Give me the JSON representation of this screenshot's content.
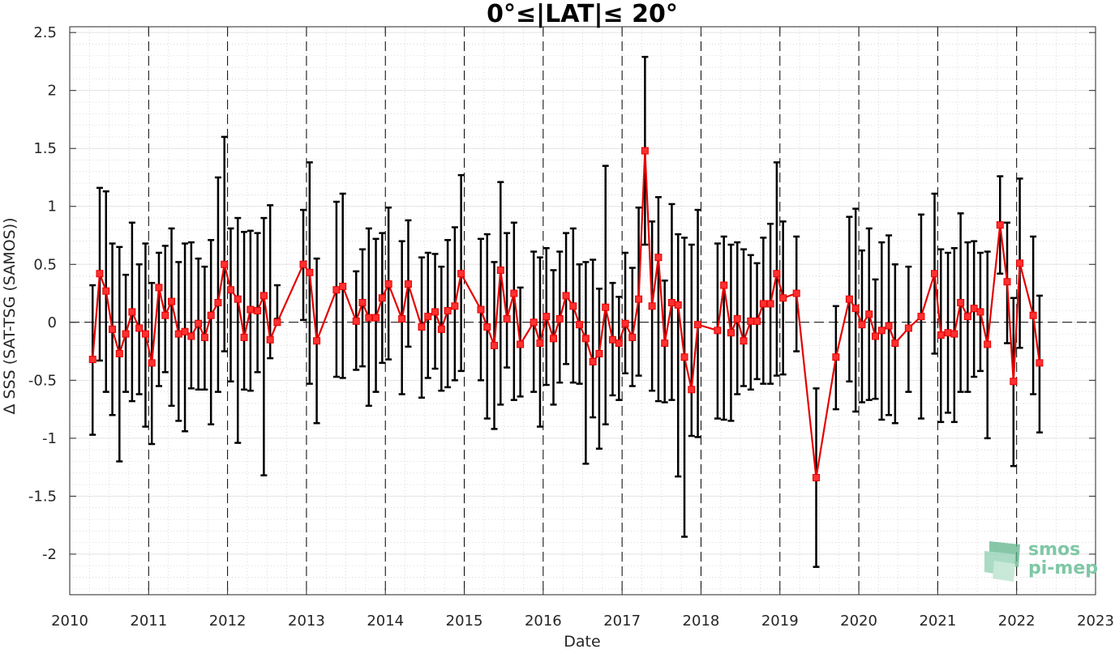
{
  "chart_data": {
    "type": "line",
    "title": "0°≤|LAT|≤ 20°",
    "xlabel": "Date",
    "ylabel": "Δ SSS (SAT-TSG (SAMOS))",
    "xlim": [
      2010,
      2023
    ],
    "ylim": [
      -2.35,
      2.55
    ],
    "xticks": [
      "2010",
      "2011",
      "2012",
      "2013",
      "2014",
      "2015",
      "2016",
      "2017",
      "2018",
      "2019",
      "2020",
      "2021",
      "2022",
      "2023"
    ],
    "yticks": [
      "2.5",
      "2",
      "1.5",
      "1",
      "0.5",
      "0",
      "-0.5",
      "-1",
      "-1.5",
      "-2"
    ],
    "vertical_dashed_lines_at_years": true,
    "zero_line": "dashed",
    "grid": "dotted",
    "colors": {
      "line": "#e60000",
      "marker_face": "#ff3030",
      "error_bar": "#000000"
    },
    "series": [
      {
        "x": [
          2010.29,
          2010.38,
          2010.46,
          2010.54,
          2010.63,
          2010.71,
          2010.79,
          2010.88,
          2010.96,
          2011.04,
          2011.13,
          2011.21,
          2011.29,
          2011.38,
          2011.46,
          2011.54,
          2011.63,
          2011.71,
          2011.79,
          2011.88,
          2011.96,
          2012.04,
          2012.13,
          2012.21,
          2012.29,
          2012.38,
          2012.46,
          2012.54,
          2012.63,
          2012.96,
          2013.04,
          2013.13,
          2013.38,
          2013.46,
          2013.63,
          2013.71,
          2013.79,
          2013.88,
          2013.96,
          2014.04,
          2014.21,
          2014.29,
          2014.46,
          2014.54,
          2014.63,
          2014.71,
          2014.79,
          2014.88,
          2014.96,
          2015.21,
          2015.29,
          2015.38,
          2015.46,
          2015.54,
          2015.63,
          2015.71,
          2015.88,
          2015.96,
          2016.04,
          2016.13,
          2016.21,
          2016.29,
          2016.38,
          2016.46,
          2016.54,
          2016.63,
          2016.71,
          2016.79,
          2016.88,
          2016.96,
          2017.04,
          2017.13,
          2017.21,
          2017.29,
          2017.38,
          2017.46,
          2017.54,
          2017.63,
          2017.71,
          2017.79,
          2017.88,
          2017.96,
          2018.21,
          2018.29,
          2018.38,
          2018.46,
          2018.54,
          2018.63,
          2018.71,
          2018.79,
          2018.88,
          2018.96,
          2019.04,
          2019.21,
          2019.46,
          2019.71,
          2019.88,
          2019.96,
          2020.04,
          2020.13,
          2020.21,
          2020.29,
          2020.38,
          2020.46,
          2020.63,
          2020.79,
          2020.96,
          2021.04,
          2021.13,
          2021.21,
          2021.29,
          2021.38,
          2021.46,
          2021.54,
          2021.63,
          2021.79,
          2021.88,
          2021.96,
          2022.04,
          2022.21,
          2022.29
        ],
        "y": [
          -0.32,
          0.42,
          0.27,
          -0.06,
          -0.27,
          -0.1,
          0.09,
          -0.05,
          -0.1,
          -0.35,
          0.3,
          0.06,
          0.18,
          -0.1,
          -0.08,
          -0.12,
          -0.01,
          -0.13,
          0.06,
          0.17,
          0.5,
          0.28,
          0.2,
          -0.13,
          0.11,
          0.1,
          0.23,
          -0.15,
          0.0,
          0.5,
          0.43,
          -0.16,
          0.28,
          0.31,
          0.01,
          0.17,
          0.04,
          0.04,
          0.21,
          0.33,
          0.03,
          0.33,
          -0.04,
          0.05,
          0.09,
          -0.06,
          0.1,
          0.14,
          0.42,
          0.11,
          -0.04,
          -0.2,
          0.45,
          0.03,
          0.25,
          -0.19,
          0.0,
          -0.18,
          0.05,
          -0.14,
          0.03,
          0.23,
          0.14,
          -0.02,
          -0.14,
          -0.34,
          -0.27,
          0.13,
          -0.15,
          -0.18,
          -0.01,
          -0.13,
          0.2,
          1.48,
          0.14,
          0.56,
          -0.18,
          0.17,
          0.15,
          -0.3,
          -0.58,
          -0.02,
          -0.07,
          0.32,
          -0.09,
          0.03,
          -0.16,
          0.01,
          0.01,
          0.16,
          0.16,
          0.42,
          0.21,
          0.25,
          -1.34,
          -0.3,
          0.2,
          0.12,
          -0.02,
          0.07,
          -0.12,
          -0.07,
          -0.03,
          -0.18,
          -0.05,
          0.05,
          0.42,
          -0.11,
          -0.09,
          -0.1,
          0.17,
          0.05,
          0.12,
          0.09,
          -0.19,
          0.84,
          0.35,
          -0.51,
          0.51,
          0.06,
          -0.35
        ],
        "y_low": [
          -0.97,
          -0.33,
          -0.6,
          -0.8,
          -1.2,
          -0.6,
          -0.68,
          -0.62,
          -0.9,
          -1.05,
          -0.55,
          -0.43,
          -0.72,
          -0.85,
          -0.94,
          -0.57,
          -0.58,
          -0.58,
          -0.88,
          -0.6,
          -0.25,
          -0.51,
          -1.04,
          -0.58,
          -0.59,
          -0.43,
          -1.32,
          -0.31,
          0.03,
          0.02,
          -0.53,
          -0.87,
          -0.47,
          -0.48,
          -0.41,
          -0.38,
          -0.72,
          -0.6,
          -0.35,
          -0.32,
          -0.62,
          -0.21,
          -0.65,
          -0.48,
          -0.4,
          -0.59,
          -0.56,
          -0.5,
          -0.42,
          -0.5,
          -0.83,
          -0.92,
          -0.71,
          -0.39,
          -0.67,
          -0.64,
          -0.6,
          -0.9,
          -0.54,
          -0.71,
          -0.52,
          -0.36,
          -0.52,
          -0.53,
          -1.22,
          -0.82,
          -1.09,
          -0.88,
          -0.63,
          -0.67,
          -0.44,
          -0.55,
          -0.46,
          0.67,
          -0.59,
          -0.68,
          -0.69,
          -0.67,
          -1.33,
          -1.85,
          -0.98,
          -0.99,
          -0.83,
          -0.84,
          -0.85,
          -0.62,
          -0.55,
          -0.58,
          -0.49,
          -0.53,
          -0.53,
          -0.46,
          -0.45,
          -0.25,
          -2.11,
          -0.75,
          -0.51,
          -0.77,
          -0.69,
          -0.67,
          -0.66,
          -0.84,
          -0.8,
          -0.87,
          -0.6,
          -0.83,
          -0.27,
          -0.86,
          -0.78,
          -0.86,
          -0.6,
          -0.6,
          -0.47,
          -0.42,
          -1.0,
          0.42,
          -0.18,
          -1.24,
          -0.22,
          -0.62,
          -0.95
        ],
        "y_high": [
          0.32,
          1.16,
          1.13,
          0.68,
          0.65,
          0.41,
          0.86,
          0.5,
          0.68,
          0.34,
          0.6,
          0.66,
          0.81,
          0.52,
          0.68,
          0.69,
          0.55,
          0.48,
          0.71,
          1.25,
          1.6,
          0.81,
          0.9,
          0.78,
          0.79,
          0.77,
          0.9,
          1.01,
          0.32,
          0.97,
          1.38,
          0.55,
          1.04,
          1.11,
          0.44,
          0.63,
          0.81,
          0.72,
          0.77,
          0.99,
          0.7,
          0.88,
          0.56,
          0.6,
          0.59,
          0.48,
          0.71,
          0.82,
          1.27,
          0.72,
          0.76,
          0.52,
          1.21,
          0.77,
          0.86,
          0.3,
          0.61,
          0.56,
          0.64,
          0.45,
          0.61,
          0.77,
          0.81,
          0.5,
          0.52,
          0.54,
          0.29,
          1.35,
          0.34,
          0.22,
          0.6,
          0.47,
          0.99,
          2.29,
          0.87,
          1.08,
          0.36,
          1.02,
          0.76,
          0.73,
          0.67,
          0.97,
          0.68,
          0.74,
          0.67,
          0.69,
          0.63,
          0.58,
          0.51,
          0.73,
          0.85,
          1.38,
          0.87,
          0.74,
          -0.57,
          0.14,
          0.91,
          0.98,
          0.62,
          0.81,
          0.37,
          0.69,
          0.75,
          0.5,
          0.48,
          0.93,
          1.11,
          0.63,
          0.6,
          0.64,
          0.94,
          0.69,
          0.7,
          0.6,
          0.61,
          1.26,
          0.86,
          0.21,
          1.24,
          0.74,
          0.23
        ]
      }
    ]
  },
  "logo": {
    "line1": "smos",
    "line2": "pi-mep"
  }
}
